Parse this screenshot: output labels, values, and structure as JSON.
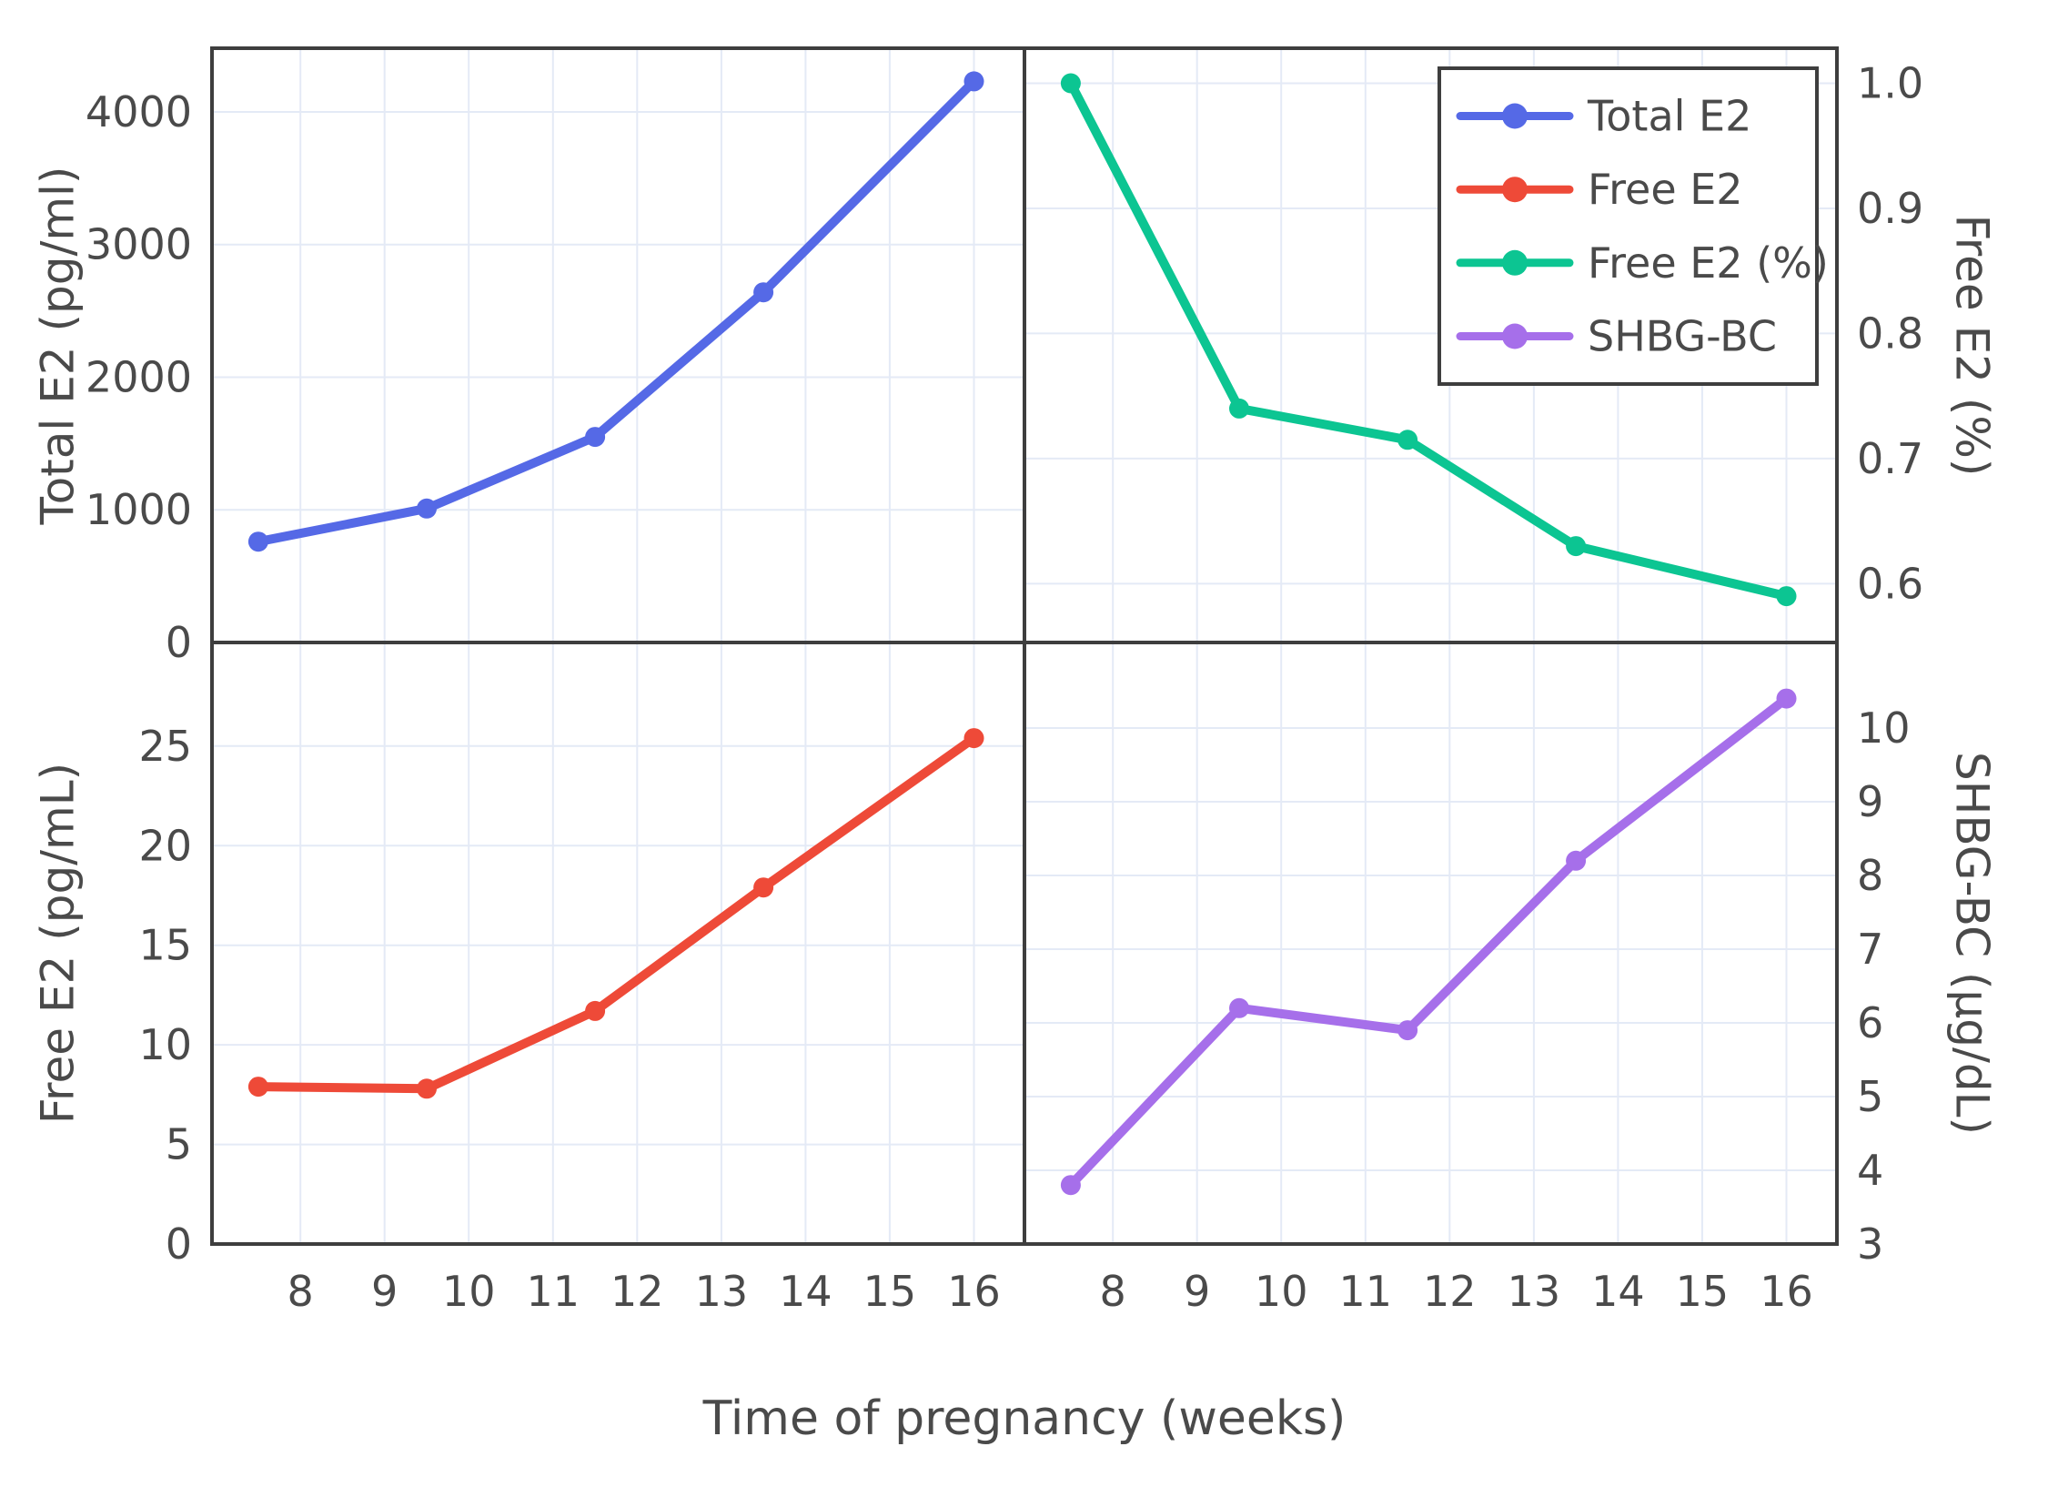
{
  "figure": {
    "background": "#ffffff",
    "grid_color": "#E4EAF6",
    "axis_line_color": "#3E3E3E",
    "text_color": "#4A4A4A",
    "colors": {
      "blue": "#5569E6",
      "red": "#EE4A38",
      "green": "#0CC592",
      "purple": "#A66FEA"
    },
    "legend": {
      "entries": [
        {
          "label": "Total E2",
          "color_key": "blue"
        },
        {
          "label": "Free E2",
          "color_key": "red"
        },
        {
          "label": "Free E2 (%)",
          "color_key": "green"
        },
        {
          "label": "SHBG-BC",
          "color_key": "purple"
        }
      ]
    }
  },
  "chart_data": {
    "type": "line",
    "title": "",
    "xlabel": "Time of pregnancy (weeks)",
    "x": [
      7.5,
      9.5,
      11.5,
      13.5,
      16
    ],
    "x_ticks": [
      8,
      9,
      10,
      11,
      12,
      13,
      14,
      15,
      16
    ],
    "x_range": [
      6.95,
      16.6
    ],
    "grid": true,
    "legend_position": "top-right-panel",
    "panels": [
      {
        "id": "total-e2",
        "position": "top-left",
        "series_name": "Total E2",
        "ylabel": "Total E2 (pg/ml)",
        "color_key": "blue",
        "label_side": "left",
        "y_ticks": [
          0,
          1000,
          2000,
          3000,
          4000
        ],
        "y_range": [
          0,
          4480
        ],
        "tick_decimals": 0,
        "values": [
          760,
          1010,
          1550,
          2640,
          4230
        ]
      },
      {
        "id": "free-e2-pct",
        "position": "top-right",
        "series_name": "Free E2 (%)",
        "ylabel": "Free E2 (%)",
        "color_key": "green",
        "label_side": "right",
        "y_ticks": [
          0.6,
          0.7,
          0.8,
          0.9,
          1.0
        ],
        "y_range": [
          0.553,
          1.028
        ],
        "tick_decimals": 1,
        "values": [
          1.0,
          0.74,
          0.715,
          0.63,
          0.59
        ]
      },
      {
        "id": "free-e2",
        "position": "bottom-left",
        "series_name": "Free E2",
        "ylabel": "Free E2 (pg/mL)",
        "color_key": "red",
        "label_side": "left",
        "y_ticks": [
          0,
          5,
          10,
          15,
          20,
          25
        ],
        "y_range": [
          0,
          30.2
        ],
        "tick_decimals": 0,
        "values": [
          7.9,
          7.8,
          11.7,
          17.9,
          25.4
        ]
      },
      {
        "id": "shbg-bc",
        "position": "bottom-right",
        "series_name": "SHBG-BC",
        "ylabel": "SHBG-BC (µg/dL)",
        "color_key": "purple",
        "label_side": "right",
        "y_ticks": [
          3,
          4,
          5,
          6,
          7,
          8,
          9,
          10
        ],
        "y_range": [
          3,
          11.16
        ],
        "tick_decimals": 0,
        "values": [
          3.8,
          6.2,
          5.9,
          8.2,
          10.4
        ]
      }
    ]
  }
}
